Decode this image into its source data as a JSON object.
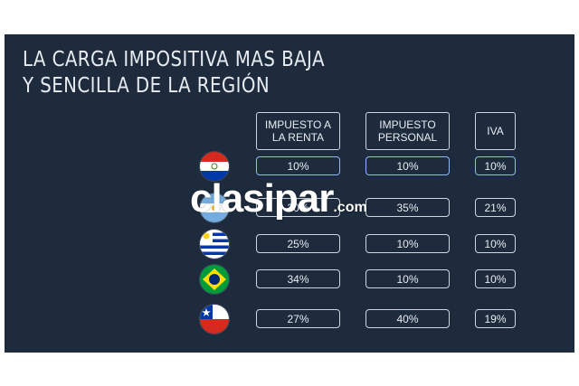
{
  "title": {
    "line1": "LA CARGA IMPOSITIVA MAS BAJA",
    "line2": "Y SENCILLA DE LA REGIÓN"
  },
  "columns": [
    {
      "line1": "IMPUESTO A",
      "line2": "LA RENTA"
    },
    {
      "line1": "IMPUESTO",
      "line2": "PERSONAL"
    },
    {
      "line1": "IVA",
      "line2": ""
    }
  ],
  "rows": [
    {
      "flag": "paraguay-flag-icon",
      "renta": "10%",
      "personal": "10%",
      "iva": "10%"
    },
    {
      "flag": "argentina-flag-icon",
      "renta": "30%",
      "personal": "35%",
      "iva": "21%"
    },
    {
      "flag": "uruguay-flag-icon",
      "renta": "25%",
      "personal": "10%",
      "iva": "10%"
    },
    {
      "flag": "brazil-flag-icon",
      "renta": "34%",
      "personal": "10%",
      "iva": "10%"
    },
    {
      "flag": "chile-flag-icon",
      "renta": "27%",
      "personal": "40%",
      "iva": "19%"
    }
  ],
  "watermark": {
    "main": "clasipar",
    "suffix": ".com"
  },
  "colors": {
    "background": "#1d2b3d",
    "text": "#e8ecf2",
    "highlight_border": "#8fb8ff"
  }
}
